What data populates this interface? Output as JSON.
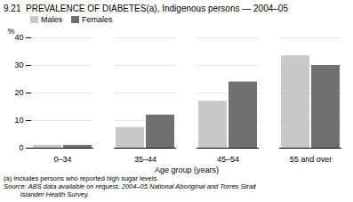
{
  "chart_data": {
    "type": "bar",
    "title": "9.21  PREVALENCE OF DIABETES(a), Indigenous persons — 2004–05",
    "categories": [
      "0–34",
      "35–44",
      "45–54",
      "55 and over"
    ],
    "series": [
      {
        "name": "Males",
        "color": "#c8c8c8",
        "values": [
          1.0,
          7.5,
          17.0,
          33.5
        ]
      },
      {
        "name": "Females",
        "color": "#707070",
        "values": [
          1.0,
          12.0,
          24.0,
          30.0
        ]
      }
    ],
    "xlabel": "Age group (years)",
    "ylabel": "%",
    "ylim": [
      0,
      40
    ],
    "yticks": [
      0,
      10,
      20,
      30,
      40
    ],
    "grid": true,
    "legend": "upper left",
    "annotations": [
      "(a) Includes persons who reported high sugar levels.",
      "Source: ABS data available on request, 2004–05 National Aboriginal and Torres Strait",
      "         Islander Health Survey."
    ]
  }
}
